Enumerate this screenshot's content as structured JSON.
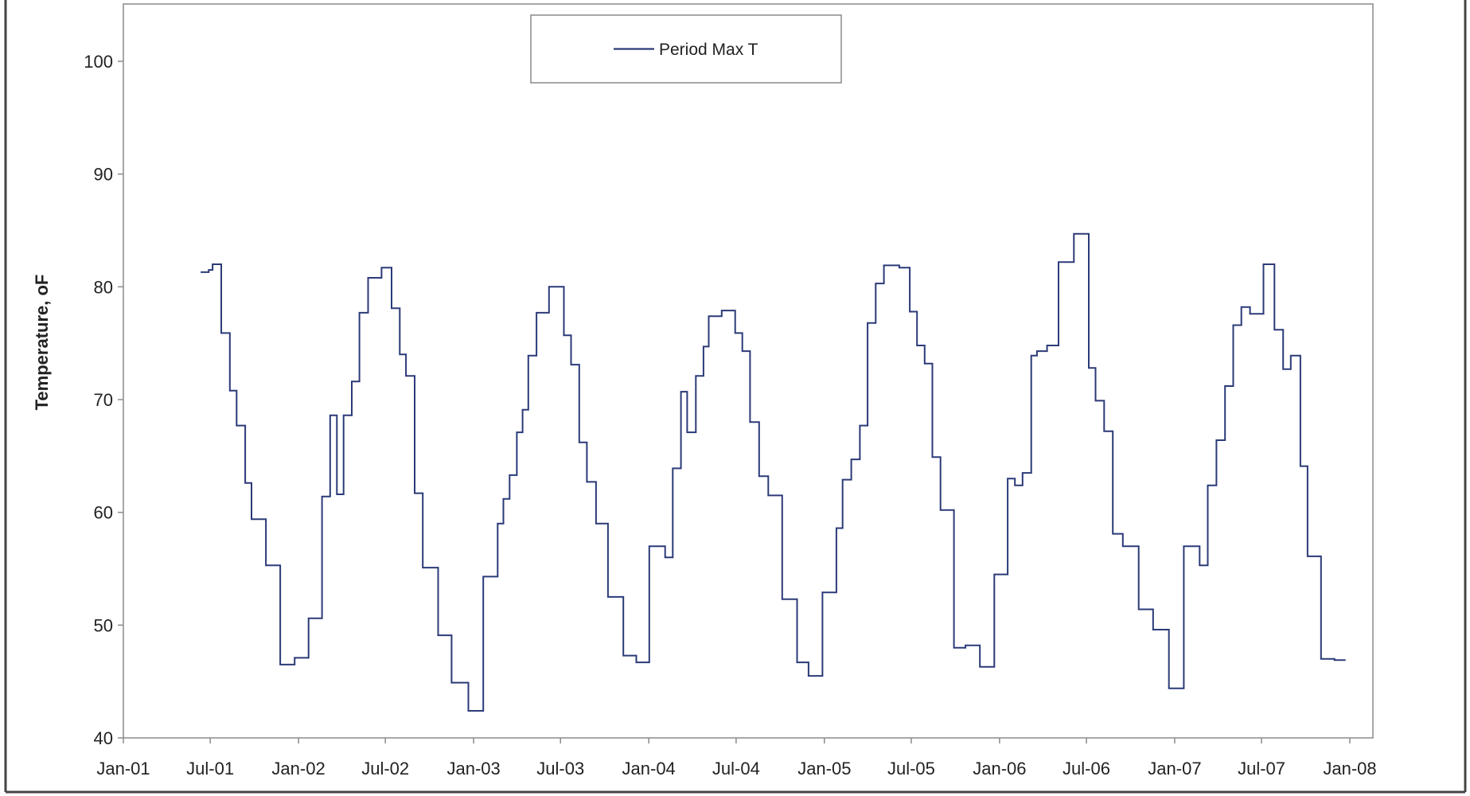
{
  "chart_data": {
    "type": "line",
    "title": "",
    "xlabel": "",
    "ylabel": "Temperature, oF",
    "legend": {
      "position": "top-center",
      "entries": [
        "Period Max T"
      ]
    },
    "ylim": [
      40,
      100
    ],
    "yticks": [
      40,
      50,
      60,
      70,
      80,
      90,
      100
    ],
    "xlim": [
      "2001-01-01",
      "2008-01-01"
    ],
    "xticks": [
      "2001-01-01",
      "2001-07-01",
      "2002-01-01",
      "2002-07-01",
      "2003-01-01",
      "2003-07-01",
      "2004-01-01",
      "2004-07-01",
      "2005-01-01",
      "2005-07-01",
      "2006-01-01",
      "2006-07-01",
      "2007-01-01",
      "2007-07-01",
      "2008-01-01"
    ],
    "xtick_labels": [
      "Jan-01",
      "Jul-01",
      "Jan-02",
      "Jul-02",
      "Jan-03",
      "Jul-03",
      "Jan-04",
      "Jul-04",
      "Jan-05",
      "Jul-05",
      "Jan-06",
      "Jul-06",
      "Jan-07",
      "Jul-07",
      "Jan-08"
    ],
    "grid": false,
    "series": [
      {
        "name": "Period Max T",
        "color": "#2b3a78",
        "step": true,
        "points": [
          [
            "2001-06-11",
            81.3
          ],
          [
            "2001-06-28",
            81.5
          ],
          [
            "2001-07-06",
            82.0
          ],
          [
            "2001-07-24",
            75.9
          ],
          [
            "2001-08-11",
            70.8
          ],
          [
            "2001-08-25",
            67.7
          ],
          [
            "2001-09-12",
            62.6
          ],
          [
            "2001-09-25",
            59.4
          ],
          [
            "2001-10-25",
            55.3
          ],
          [
            "2001-11-24",
            46.5
          ],
          [
            "2001-12-24",
            47.1
          ],
          [
            "2002-01-22",
            50.6
          ],
          [
            "2002-02-19",
            61.4
          ],
          [
            "2002-03-08",
            68.6
          ],
          [
            "2002-03-22",
            61.6
          ],
          [
            "2002-04-05",
            68.6
          ],
          [
            "2002-04-22",
            71.6
          ],
          [
            "2002-05-08",
            77.7
          ],
          [
            "2002-05-26",
            80.8
          ],
          [
            "2002-06-23",
            81.7
          ],
          [
            "2002-07-14",
            78.1
          ],
          [
            "2002-07-31",
            74.0
          ],
          [
            "2002-08-13",
            72.1
          ],
          [
            "2002-08-31",
            61.7
          ],
          [
            "2002-09-17",
            55.1
          ],
          [
            "2002-10-19",
            49.1
          ],
          [
            "2002-11-16",
            44.9
          ],
          [
            "2002-12-21",
            42.4
          ],
          [
            "2003-01-21",
            54.3
          ],
          [
            "2003-02-20",
            59.0
          ],
          [
            "2003-03-04",
            61.2
          ],
          [
            "2003-03-17",
            63.3
          ],
          [
            "2003-04-01",
            67.1
          ],
          [
            "2003-04-13",
            69.1
          ],
          [
            "2003-04-25",
            73.9
          ],
          [
            "2003-05-12",
            77.7
          ],
          [
            "2003-06-07",
            80.0
          ],
          [
            "2003-07-08",
            75.7
          ],
          [
            "2003-07-23",
            73.1
          ],
          [
            "2003-08-09",
            66.2
          ],
          [
            "2003-08-25",
            62.7
          ],
          [
            "2003-09-13",
            59.0
          ],
          [
            "2003-10-08",
            52.5
          ],
          [
            "2003-11-09",
            47.3
          ],
          [
            "2003-12-06",
            46.7
          ],
          [
            "2004-01-02",
            57.0
          ],
          [
            "2004-02-04",
            56.0
          ],
          [
            "2004-02-20",
            63.9
          ],
          [
            "2004-03-08",
            70.7
          ],
          [
            "2004-03-21",
            67.1
          ],
          [
            "2004-04-08",
            72.1
          ],
          [
            "2004-04-24",
            74.7
          ],
          [
            "2004-05-05",
            77.4
          ],
          [
            "2004-06-01",
            77.9
          ],
          [
            "2004-06-29",
            75.9
          ],
          [
            "2004-07-14",
            74.3
          ],
          [
            "2004-07-30",
            68.0
          ],
          [
            "2004-08-18",
            63.2
          ],
          [
            "2004-09-06",
            61.5
          ],
          [
            "2004-10-05",
            52.3
          ],
          [
            "2004-11-05",
            46.7
          ],
          [
            "2004-11-29",
            45.5
          ],
          [
            "2004-12-28",
            52.9
          ],
          [
            "2005-01-26",
            58.6
          ],
          [
            "2005-02-08",
            62.9
          ],
          [
            "2005-02-26",
            64.7
          ],
          [
            "2005-03-16",
            67.7
          ],
          [
            "2005-04-01",
            76.8
          ],
          [
            "2005-04-18",
            80.3
          ],
          [
            "2005-05-05",
            81.9
          ],
          [
            "2005-06-06",
            81.7
          ],
          [
            "2005-06-28",
            77.8
          ],
          [
            "2005-07-13",
            74.8
          ],
          [
            "2005-07-29",
            73.2
          ],
          [
            "2005-08-14",
            64.9
          ],
          [
            "2005-08-31",
            60.2
          ],
          [
            "2005-09-28",
            48.0
          ],
          [
            "2005-10-22",
            48.2
          ],
          [
            "2005-11-21",
            46.3
          ],
          [
            "2005-12-21",
            54.5
          ],
          [
            "2006-01-18",
            63.0
          ],
          [
            "2006-02-02",
            62.4
          ],
          [
            "2006-02-18",
            63.5
          ],
          [
            "2006-03-08",
            73.9
          ],
          [
            "2006-03-20",
            74.3
          ],
          [
            "2006-04-10",
            74.8
          ],
          [
            "2006-05-04",
            82.2
          ],
          [
            "2006-06-05",
            84.7
          ],
          [
            "2006-07-06",
            72.8
          ],
          [
            "2006-07-20",
            69.9
          ],
          [
            "2006-08-07",
            67.2
          ],
          [
            "2006-08-25",
            58.1
          ],
          [
            "2006-09-15",
            57.0
          ],
          [
            "2006-10-18",
            51.4
          ],
          [
            "2006-11-17",
            49.6
          ],
          [
            "2006-12-20",
            44.4
          ],
          [
            "2007-01-20",
            57.0
          ],
          [
            "2007-02-22",
            55.3
          ],
          [
            "2007-03-11",
            62.4
          ],
          [
            "2007-03-29",
            66.4
          ],
          [
            "2007-04-16",
            71.2
          ],
          [
            "2007-05-03",
            76.6
          ],
          [
            "2007-05-20",
            78.2
          ],
          [
            "2007-06-07",
            77.6
          ],
          [
            "2007-07-05",
            82.0
          ],
          [
            "2007-07-28",
            76.2
          ],
          [
            "2007-08-15",
            72.7
          ],
          [
            "2007-08-31",
            73.9
          ],
          [
            "2007-09-20",
            64.1
          ],
          [
            "2007-10-05",
            56.1
          ],
          [
            "2007-11-02",
            47.0
          ],
          [
            "2007-11-30",
            46.9
          ]
        ]
      }
    ]
  }
}
